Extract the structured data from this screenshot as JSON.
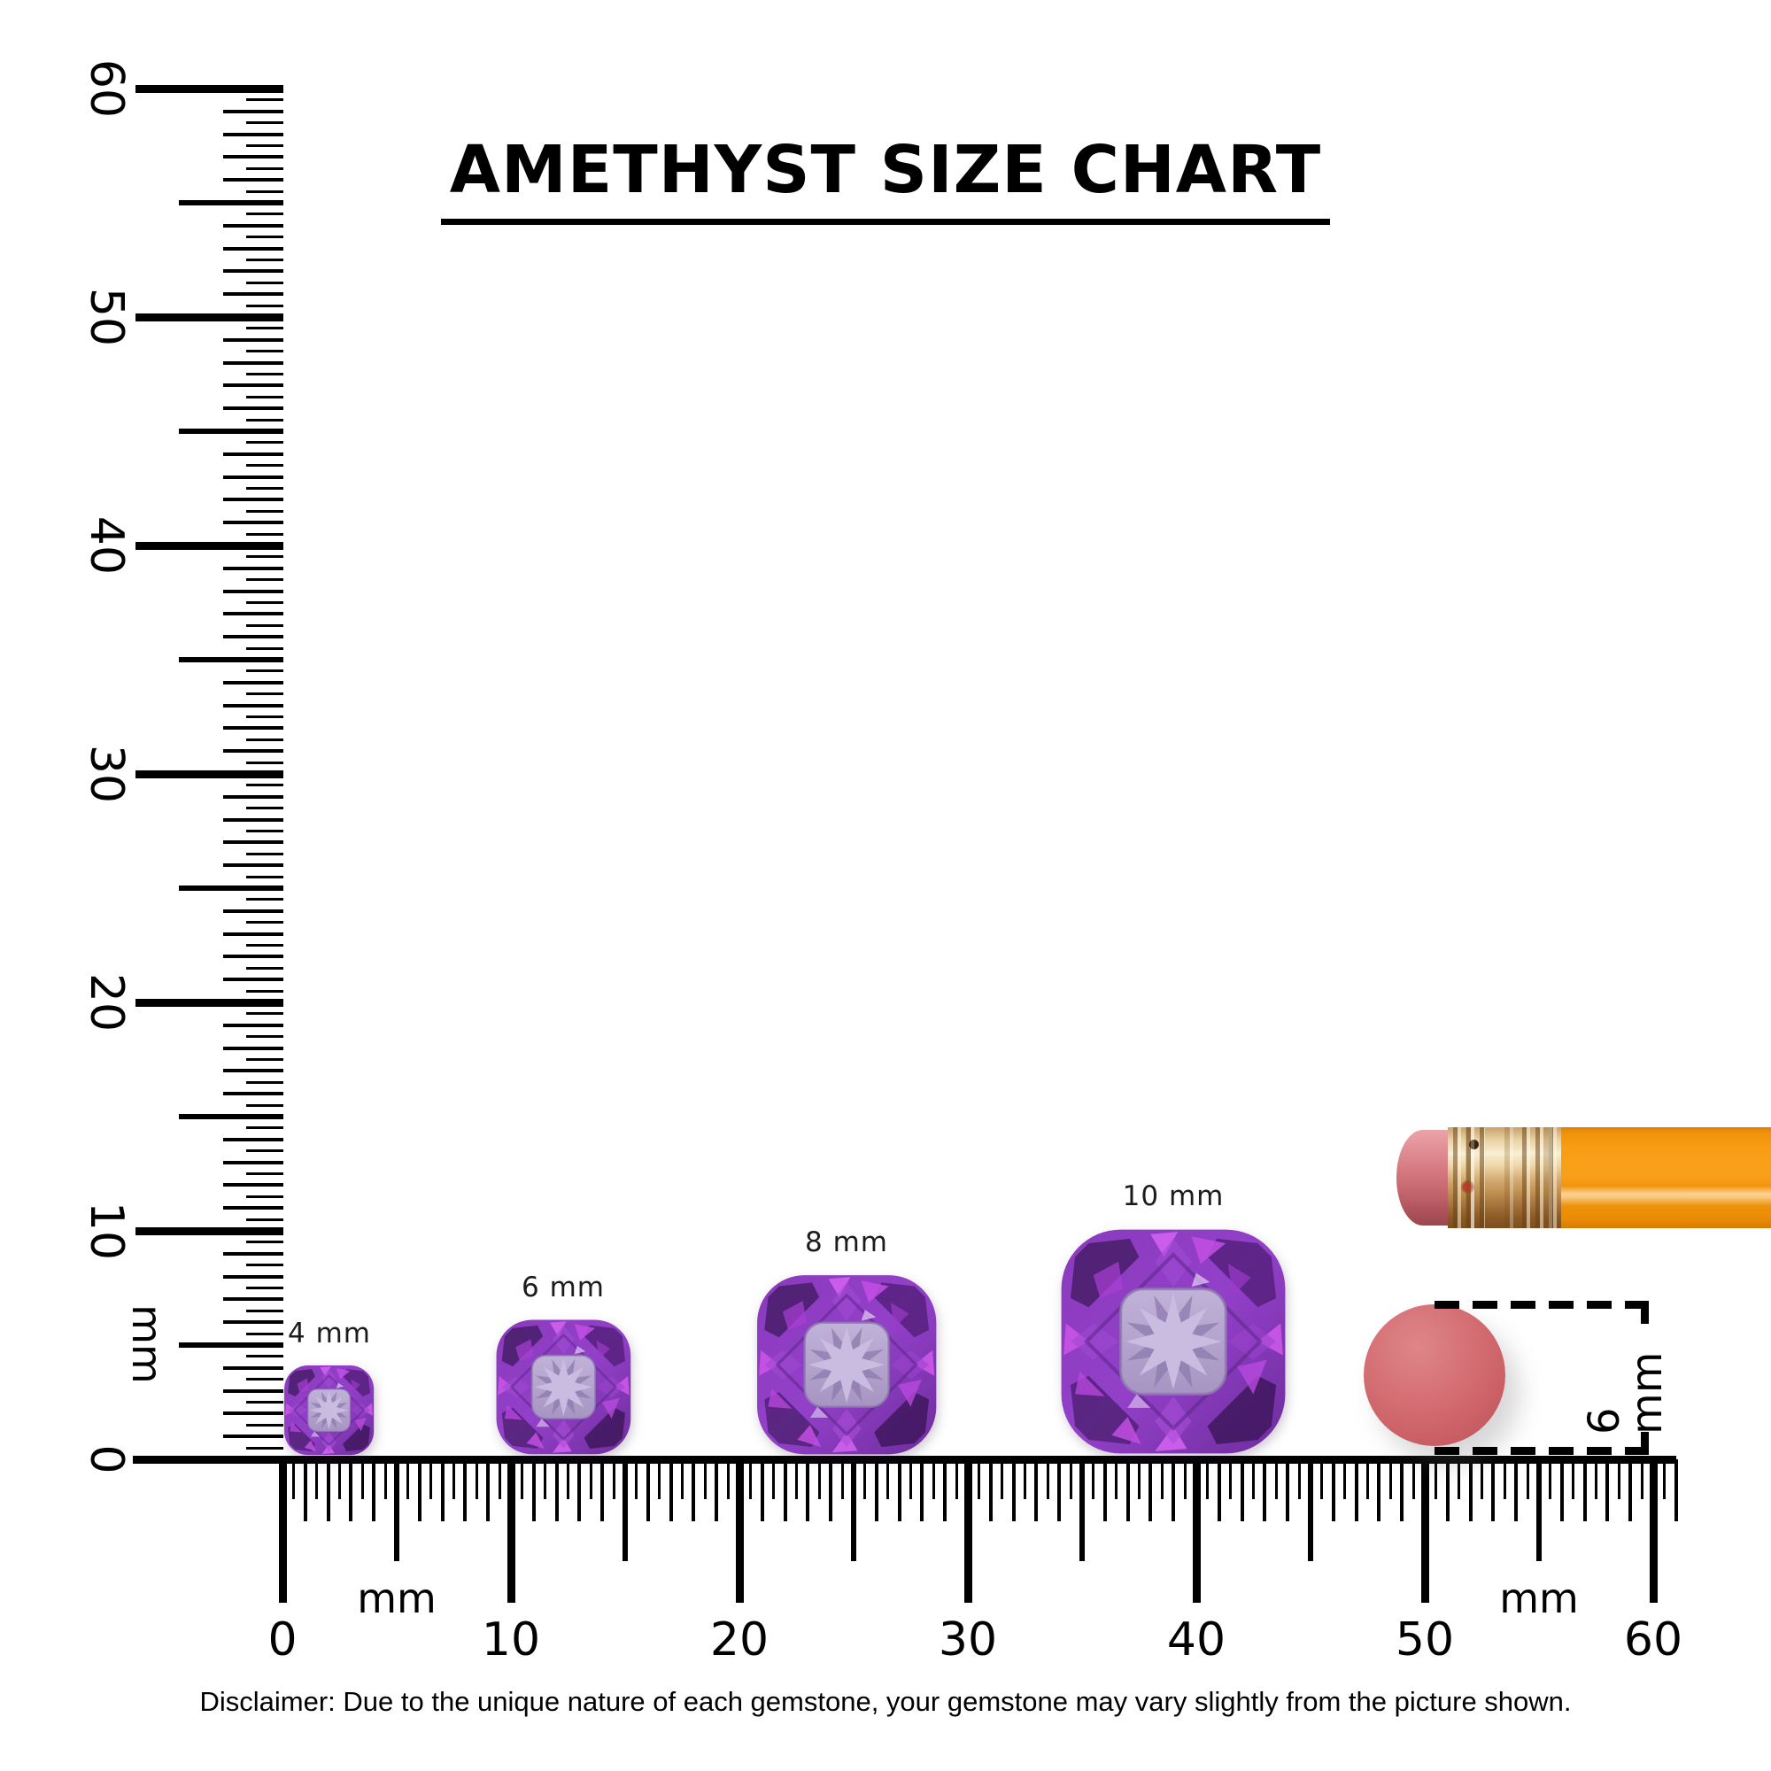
{
  "title": "AMETHYST SIZE CHART",
  "disclaimer": "Disclaimer: Due to the unique nature of each gemstone, your gemstone may vary slightly from the picture shown.",
  "unit_label": "mm",
  "annotation": {
    "eraser_diameter": "6 mm"
  },
  "chart_data": {
    "type": "size_chart",
    "title": "AMETHYST SIZE CHART",
    "unit": "mm",
    "items": [
      {
        "label": "4 mm",
        "size_mm": 4
      },
      {
        "label": "6 mm",
        "size_mm": 6
      },
      {
        "label": "8 mm",
        "size_mm": 8
      },
      {
        "label": "10 mm",
        "size_mm": 10
      }
    ],
    "reference_object": {
      "name": "pencil eraser end view",
      "diameter_label": "6 mm",
      "diameter_mm": 6
    },
    "rulers": {
      "vertical": {
        "unit": "mm",
        "min": 0,
        "max": 60,
        "tick_step": 0.5,
        "numbered_every": 10,
        "labels": [
          0,
          10,
          20,
          30,
          40,
          50,
          60
        ]
      },
      "horizontal": {
        "unit": "mm",
        "min": 0,
        "max": 60,
        "tick_step": 0.5,
        "numbered_every": 10,
        "labels": [
          0,
          10,
          20,
          30,
          40,
          50,
          60
        ]
      }
    }
  },
  "colors": {
    "background": "#ffffff",
    "ink": "#000000",
    "label_text": "#1c1c1c",
    "amethyst_base": "#8d3fc4",
    "amethyst_deep": "#4a1f6d",
    "amethyst_accent": "#cb58e8",
    "amethyst_table": "#b5a4ce",
    "amethyst_star": "#cabbe0",
    "pencil_body_orange": "#f89c14",
    "pencil_ferrule_gold": "#d9a876",
    "pencil_eraser_pink": "#d4767d",
    "eraser_circle_pink": "#cb6167"
  }
}
